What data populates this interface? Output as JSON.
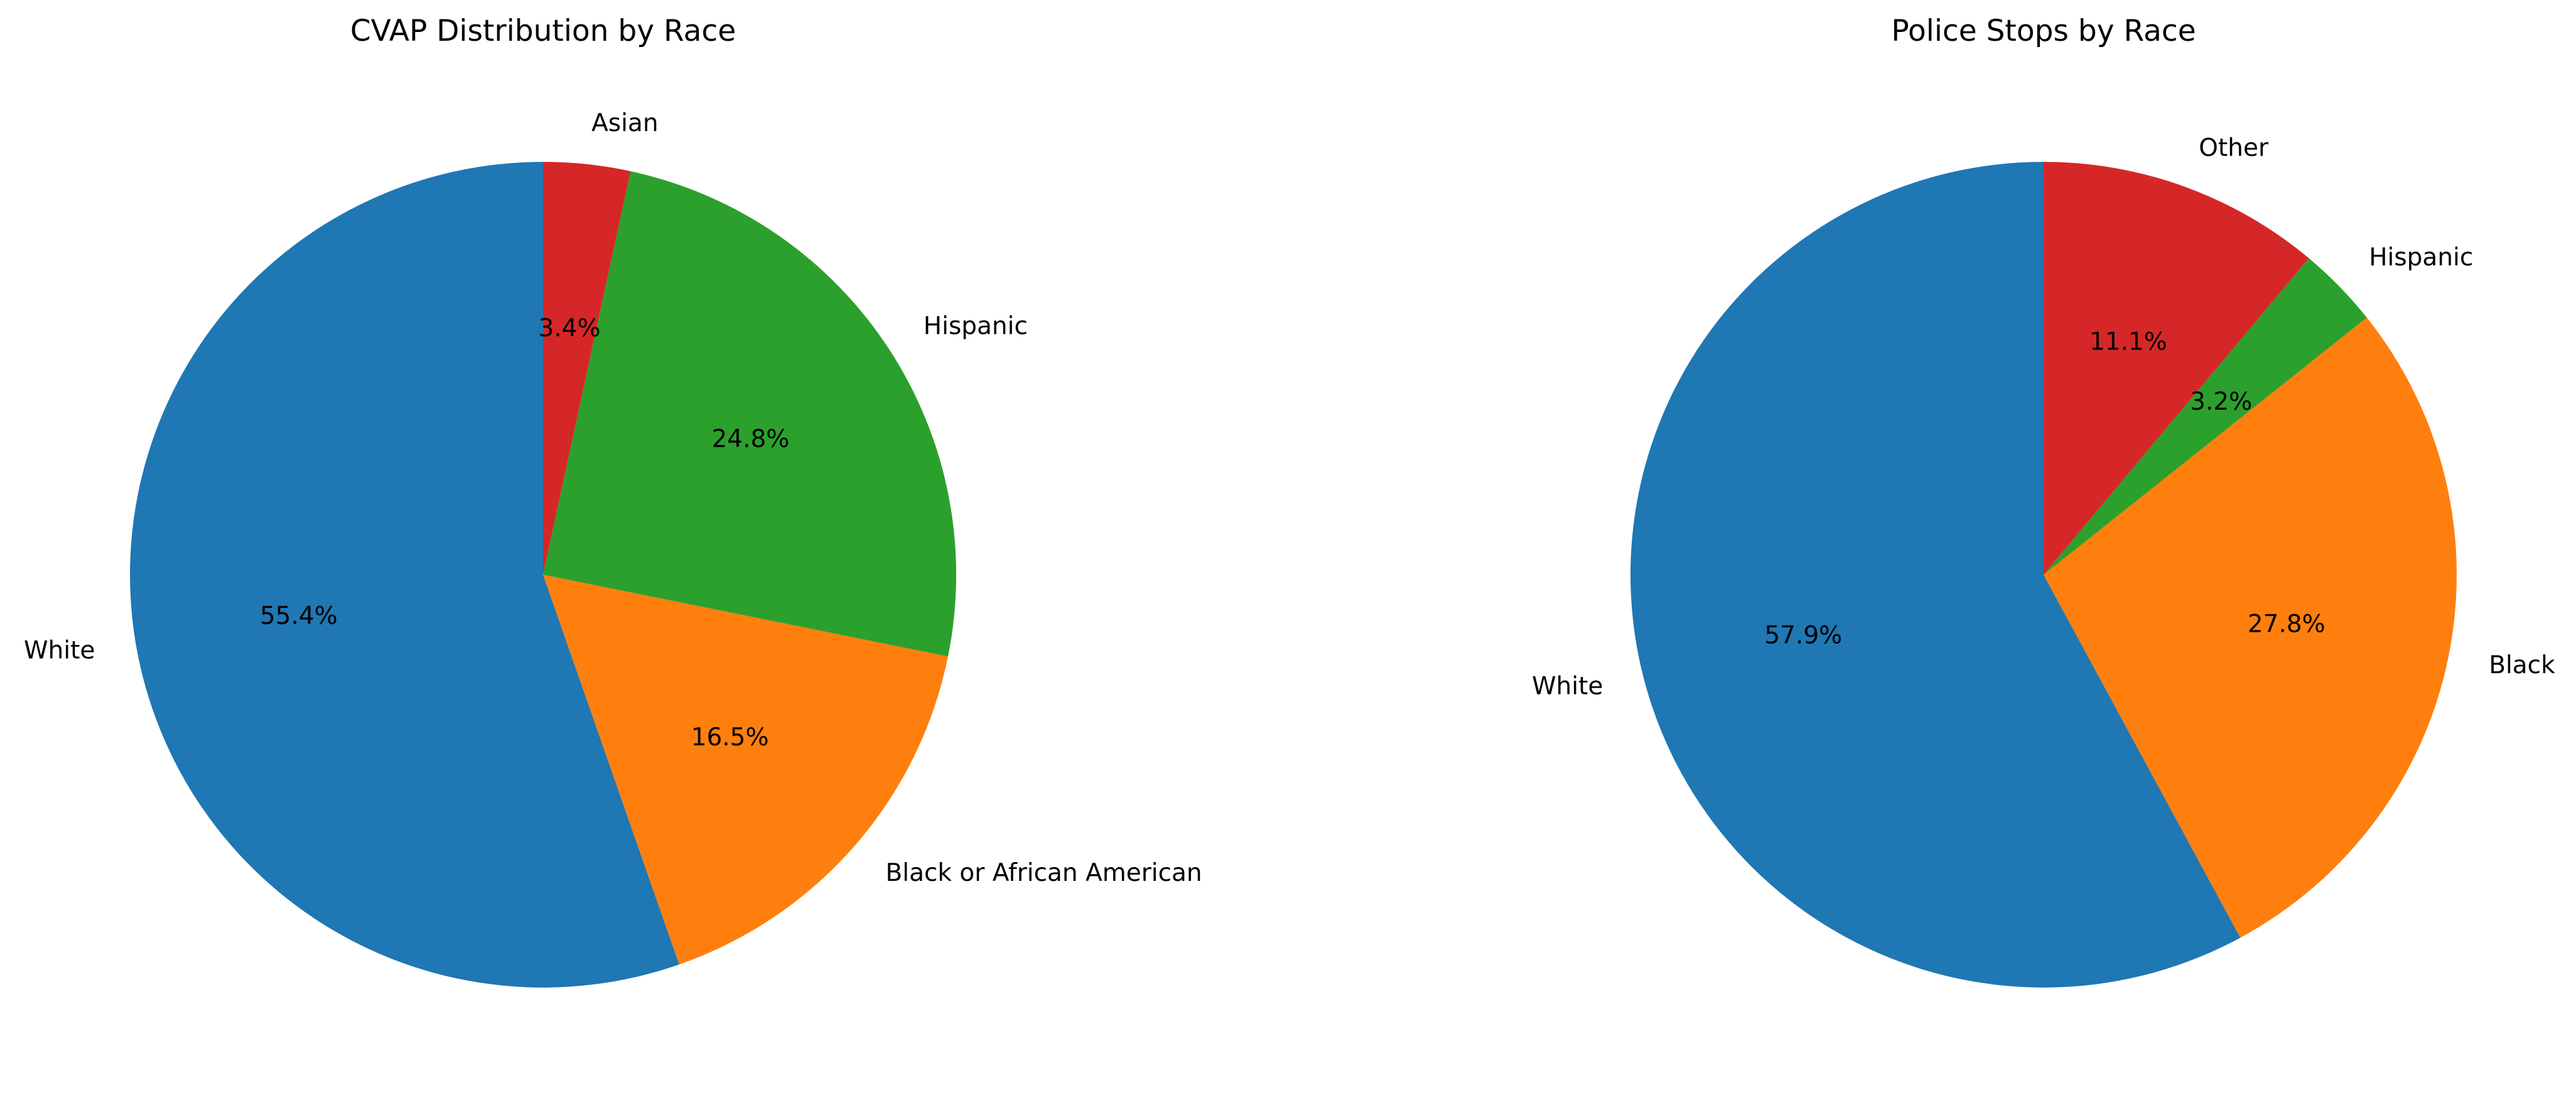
{
  "chart_data": [
    {
      "type": "pie",
      "title": "CVAP Distribution by Race",
      "categories": [
        "White",
        "Black or African American",
        "Hispanic",
        "Asian"
      ],
      "values": [
        55.4,
        16.5,
        24.8,
        3.4
      ],
      "percent_labels": [
        "55.4%",
        "16.5%",
        "24.8%",
        "3.4%"
      ],
      "colors": [
        "#1f77b4",
        "#ff7f0e",
        "#2ca02c",
        "#d62728"
      ],
      "start_angle_deg": 90,
      "direction": "counterclockwise"
    },
    {
      "type": "pie",
      "title": "Police Stops by Race",
      "categories": [
        "White",
        "Black",
        "Hispanic",
        "Other"
      ],
      "values": [
        57.9,
        27.8,
        3.2,
        11.1
      ],
      "percent_labels": [
        "57.9%",
        "27.8%",
        "3.2%",
        "11.1%"
      ],
      "colors": [
        "#1f77b4",
        "#ff7f0e",
        "#2ca02c",
        "#d62728"
      ],
      "start_angle_deg": 90,
      "direction": "counterclockwise"
    }
  ]
}
